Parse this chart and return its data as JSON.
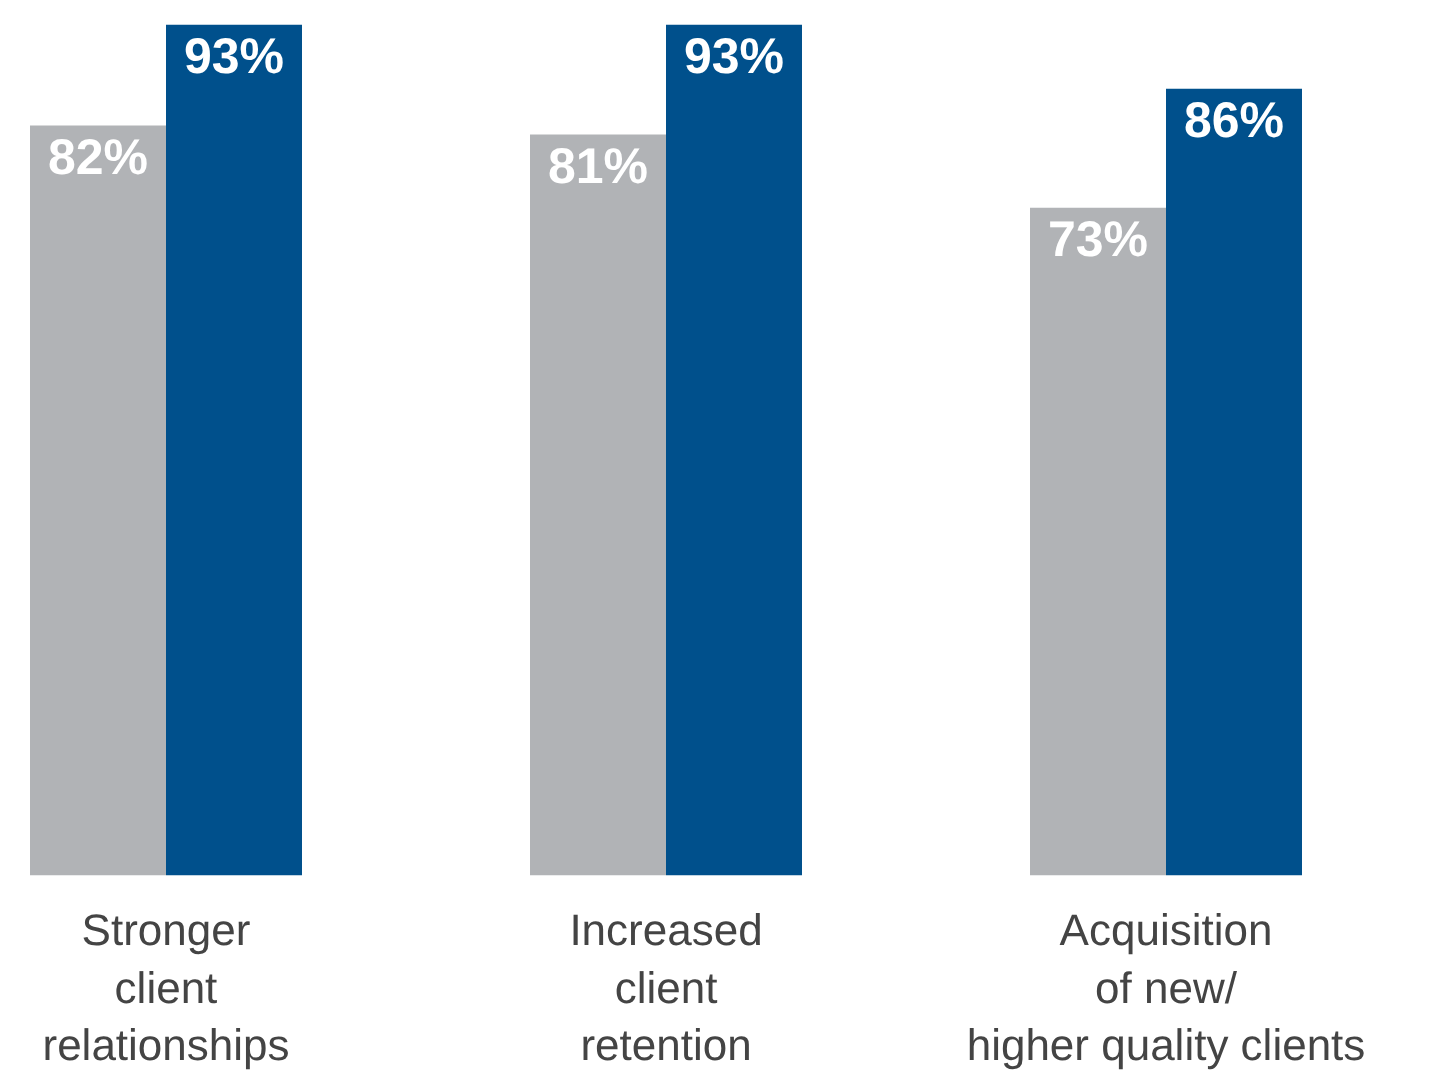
{
  "chart_data": {
    "type": "bar",
    "categories": [
      "Stronger\nclient\nrelationships",
      "Increased\nclient\nretention",
      "Acquisition\nof new/\nhigher quality clients"
    ],
    "series": [
      {
        "color": "#b1b3b6",
        "values": [
          82,
          81,
          73
        ],
        "value_labels": [
          "82%",
          "81%",
          "73%"
        ]
      },
      {
        "color": "#00508c",
        "values": [
          93,
          93,
          86
        ],
        "value_labels": [
          "93%",
          "93%",
          "86%"
        ]
      }
    ],
    "grid": false,
    "tick_labels": "x"
  }
}
